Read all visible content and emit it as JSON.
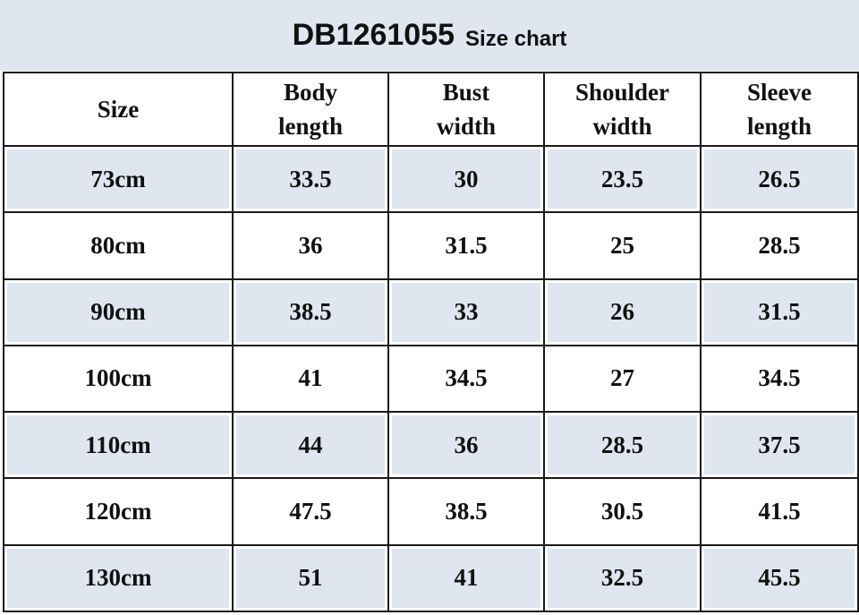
{
  "title": {
    "code": "DB1261055",
    "subtitle": "Size chart"
  },
  "colors": {
    "shade": "#dfe6ef",
    "border": "#1a1a1a"
  },
  "table": {
    "headers": [
      [
        "Size"
      ],
      [
        "Body",
        "length"
      ],
      [
        "Bust",
        "width"
      ],
      [
        "Shoulder",
        "width"
      ],
      [
        "Sleeve",
        "length"
      ]
    ],
    "rows": [
      [
        "73cm",
        "33.5",
        "30",
        "23.5",
        "26.5"
      ],
      [
        "80cm",
        "36",
        "31.5",
        "25",
        "28.5"
      ],
      [
        "90cm",
        "38.5",
        "33",
        "26",
        "31.5"
      ],
      [
        "100cm",
        "41",
        "34.5",
        "27",
        "34.5"
      ],
      [
        "110cm",
        "44",
        "36",
        "28.5",
        "37.5"
      ],
      [
        "120cm",
        "47.5",
        "38.5",
        "30.5",
        "41.5"
      ],
      [
        "130cm",
        "51",
        "41",
        "32.5",
        "45.5"
      ]
    ]
  }
}
